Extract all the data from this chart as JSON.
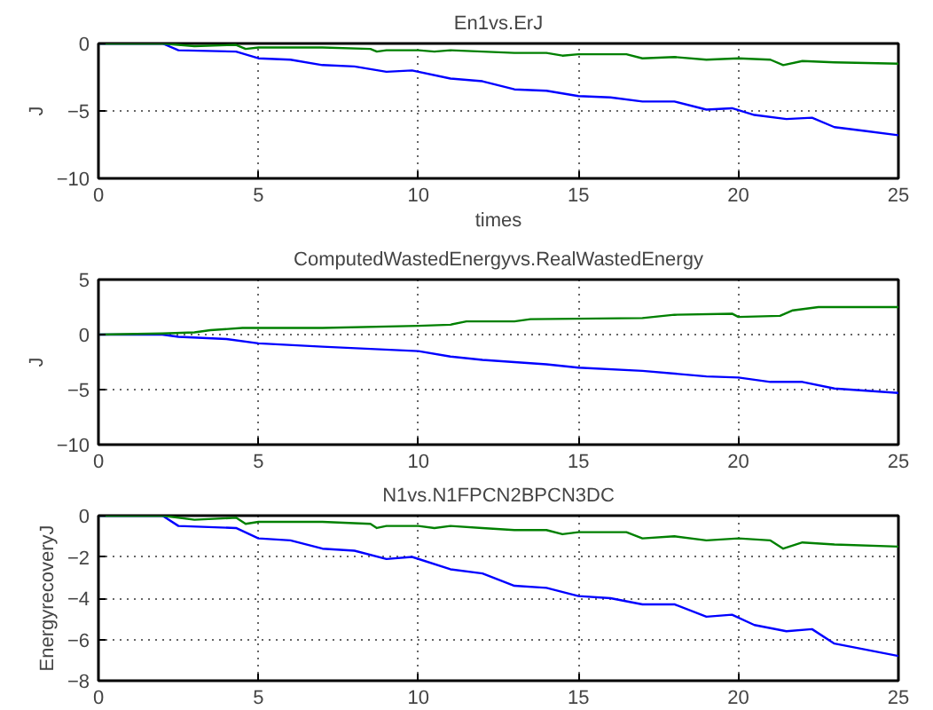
{
  "chart_data": [
    {
      "type": "line",
      "title": "En1vs.ErJ",
      "xlabel": "times",
      "ylabel": "J",
      "xlim": [
        0,
        25
      ],
      "ylim": [
        -10,
        0
      ],
      "xticks": [
        0,
        5,
        10,
        15,
        20,
        25
      ],
      "yticks": [
        -10,
        -5,
        0
      ],
      "grid": true,
      "line_style": "solid",
      "series": [
        {
          "color": "#0000ff",
          "x": [
            0,
            2,
            2.5,
            4.3,
            5,
            6,
            7,
            8,
            9,
            9.8,
            11,
            12,
            13,
            14,
            15,
            16,
            17,
            18,
            19,
            19.8,
            20.5,
            21.5,
            22.3,
            23,
            24,
            25
          ],
          "values": [
            0,
            0,
            -0.5,
            -0.6,
            -1.1,
            -1.2,
            -1.6,
            -1.7,
            -2.1,
            -2.0,
            -2.6,
            -2.8,
            -3.4,
            -3.5,
            -3.9,
            -4.0,
            -4.3,
            -4.3,
            -4.9,
            -4.8,
            -5.3,
            -5.6,
            -5.5,
            -6.2,
            -6.5,
            -6.8
          ]
        },
        {
          "color": "#008000",
          "x": [
            0,
            2,
            3,
            4.3,
            4.6,
            5,
            7,
            8.5,
            8.7,
            9,
            10,
            10.5,
            11,
            12,
            13,
            14,
            14.5,
            15,
            16.5,
            17,
            18,
            19,
            20,
            21,
            21.4,
            22,
            23,
            25
          ],
          "values": [
            0,
            0,
            -0.2,
            -0.1,
            -0.4,
            -0.3,
            -0.3,
            -0.4,
            -0.6,
            -0.5,
            -0.5,
            -0.6,
            -0.5,
            -0.6,
            -0.7,
            -0.7,
            -0.9,
            -0.8,
            -0.8,
            -1.1,
            -1.0,
            -1.2,
            -1.1,
            -1.2,
            -1.6,
            -1.3,
            -1.4,
            -1.5
          ]
        }
      ]
    },
    {
      "type": "line",
      "title": "ComputedWastedEnergyvs.RealWastedEnergy",
      "ylabel": "J",
      "xlim": [
        0,
        25
      ],
      "ylim": [
        -10,
        5
      ],
      "xticks": [
        0,
        5,
        10,
        15,
        20,
        25
      ],
      "yticks": [
        -10,
        -5,
        0,
        5
      ],
      "grid": true,
      "line_style": "solid",
      "series": [
        {
          "color": "#0000ff",
          "x": [
            0,
            2,
            2.5,
            4,
            5,
            7,
            10,
            11,
            12,
            14,
            15,
            17,
            19,
            20,
            21,
            22,
            23,
            25
          ],
          "values": [
            0,
            0,
            -0.2,
            -0.4,
            -0.8,
            -1.1,
            -1.5,
            -2.0,
            -2.3,
            -2.7,
            -3.0,
            -3.3,
            -3.8,
            -3.9,
            -4.3,
            -4.3,
            -4.9,
            -5.3
          ]
        },
        {
          "color": "#008000",
          "x": [
            0,
            2,
            3,
            3.5,
            4.5,
            7,
            10,
            11,
            11.5,
            13,
            13.5,
            17,
            18,
            19.8,
            20,
            21.3,
            21.7,
            22.5,
            25
          ],
          "values": [
            0,
            0.1,
            0.2,
            0.4,
            0.6,
            0.6,
            0.8,
            0.9,
            1.2,
            1.2,
            1.4,
            1.5,
            1.8,
            1.9,
            1.6,
            1.7,
            2.2,
            2.5,
            2.5
          ]
        }
      ]
    },
    {
      "type": "line",
      "title": "N1vs.N1FPCN2BPCN3DC",
      "ylabel": "EnergyrecoveryJ",
      "xlim": [
        0,
        25
      ],
      "ylim": [
        -8,
        0
      ],
      "xticks": [
        0,
        5,
        10,
        15,
        20,
        25
      ],
      "yticks": [
        -8,
        -6,
        -4,
        -2,
        0
      ],
      "grid": true,
      "line_style": "solid",
      "series": [
        {
          "color": "#0000ff",
          "x": [
            0,
            2,
            2.5,
            4.3,
            5,
            6,
            7,
            8,
            9,
            9.8,
            11,
            12,
            13,
            14,
            15,
            16,
            17,
            18,
            19,
            19.8,
            20.5,
            21.5,
            22.3,
            23,
            24,
            25
          ],
          "values": [
            0,
            0,
            -0.5,
            -0.6,
            -1.1,
            -1.2,
            -1.6,
            -1.7,
            -2.1,
            -2.0,
            -2.6,
            -2.8,
            -3.4,
            -3.5,
            -3.9,
            -4.0,
            -4.3,
            -4.3,
            -4.9,
            -4.8,
            -5.3,
            -5.6,
            -5.5,
            -6.2,
            -6.5,
            -6.8
          ]
        },
        {
          "color": "#008000",
          "x": [
            0,
            2,
            3,
            4.3,
            4.6,
            5,
            7,
            8.5,
            8.7,
            9,
            10,
            10.5,
            11,
            12,
            13,
            14,
            14.5,
            15,
            16.5,
            17,
            18,
            19,
            20,
            21,
            21.4,
            22,
            23,
            25
          ],
          "values": [
            0,
            0,
            -0.2,
            -0.1,
            -0.4,
            -0.3,
            -0.3,
            -0.4,
            -0.6,
            -0.5,
            -0.5,
            -0.6,
            -0.5,
            -0.6,
            -0.7,
            -0.7,
            -0.9,
            -0.8,
            -0.8,
            -1.1,
            -1.0,
            -1.2,
            -1.1,
            -1.2,
            -1.6,
            -1.3,
            -1.4,
            -1.5
          ]
        }
      ]
    }
  ]
}
